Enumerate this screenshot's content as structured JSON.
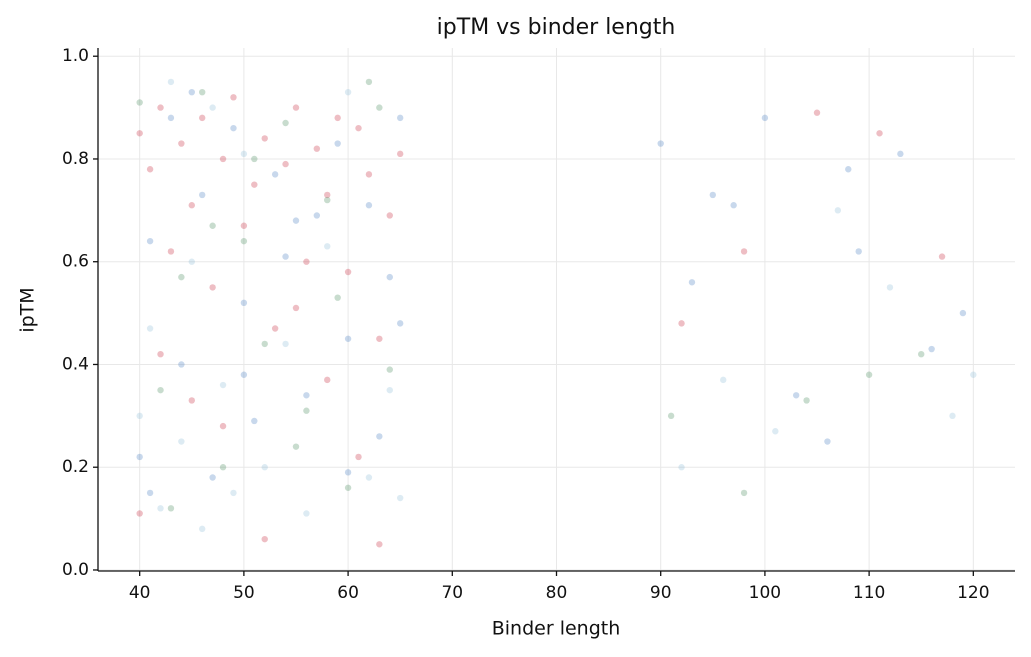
{
  "chart_data": {
    "type": "scatter",
    "title": "ipTM vs binder length",
    "x_label": "Binder length",
    "y_label": "ipTM",
    "xlim": [
      36,
      124
    ],
    "ylim": [
      -0.002,
      1.016
    ],
    "xticks": [
      40,
      50,
      60,
      70,
      80,
      90,
      100,
      110,
      120
    ],
    "yticks": [
      {
        "value": 0,
        "label": "0.0"
      },
      0.2,
      0.4,
      0.6,
      0.8,
      {
        "value": 1,
        "label": "1.0"
      }
    ],
    "grid": true,
    "series": [
      {
        "color": "#c8283c",
        "x": [
          40,
          41,
          42,
          43,
          44,
          45,
          46,
          47,
          48,
          49,
          50,
          51,
          52,
          53,
          54,
          55,
          56,
          57,
          58,
          59,
          60,
          61,
          62,
          63,
          64,
          65,
          40,
          42,
          45,
          48,
          52,
          55,
          58,
          61,
          63,
          92,
          98,
          105,
          111,
          117
        ],
        "values": [
          0.85,
          0.78,
          0.9,
          0.62,
          0.83,
          0.71,
          0.88,
          0.55,
          0.8,
          0.92,
          0.67,
          0.75,
          0.84,
          0.47,
          0.79,
          0.9,
          0.6,
          0.82,
          0.73,
          0.88,
          0.58,
          0.86,
          0.77,
          0.05,
          0.69,
          0.81,
          0.11,
          0.42,
          0.33,
          0.28,
          0.06,
          0.51,
          0.37,
          0.22,
          0.45,
          0.48,
          0.62,
          0.89,
          0.85,
          0.61
        ]
      },
      {
        "color": "#4a7fc1",
        "x": [
          40,
          41,
          43,
          44,
          46,
          47,
          49,
          50,
          51,
          53,
          54,
          56,
          57,
          59,
          60,
          62,
          63,
          64,
          65,
          41,
          45,
          50,
          55,
          60,
          65,
          90,
          93,
          97,
          100,
          103,
          106,
          109,
          113,
          116,
          119,
          95,
          108
        ],
        "values": [
          0.22,
          0.64,
          0.88,
          0.4,
          0.73,
          0.18,
          0.86,
          0.52,
          0.29,
          0.77,
          0.61,
          0.34,
          0.69,
          0.83,
          0.45,
          0.71,
          0.26,
          0.57,
          0.88,
          0.15,
          0.93,
          0.38,
          0.68,
          0.19,
          0.48,
          0.83,
          0.56,
          0.71,
          0.88,
          0.34,
          0.25,
          0.62,
          0.81,
          0.43,
          0.5,
          0.73,
          0.78
        ]
      },
      {
        "color": "#4a8c5c",
        "x": [
          40,
          42,
          44,
          46,
          48,
          50,
          52,
          54,
          56,
          58,
          60,
          62,
          64,
          43,
          47,
          51,
          55,
          59,
          63,
          91,
          98,
          104,
          110,
          115
        ],
        "values": [
          0.91,
          0.35,
          0.57,
          0.93,
          0.2,
          0.64,
          0.44,
          0.87,
          0.31,
          0.72,
          0.16,
          0.95,
          0.39,
          0.12,
          0.67,
          0.8,
          0.24,
          0.53,
          0.9,
          0.3,
          0.15,
          0.33,
          0.38,
          0.42
        ]
      },
      {
        "color": "#8fbcd8",
        "x": [
          40,
          41,
          42,
          43,
          44,
          45,
          46,
          47,
          48,
          49,
          50,
          52,
          54,
          56,
          58,
          60,
          62,
          64,
          65,
          92,
          96,
          101,
          107,
          112,
          118,
          120
        ],
        "values": [
          0.3,
          0.47,
          0.12,
          0.95,
          0.25,
          0.6,
          0.08,
          0.9,
          0.36,
          0.15,
          0.81,
          0.2,
          0.44,
          0.11,
          0.63,
          0.93,
          0.18,
          0.35,
          0.14,
          0.2,
          0.37,
          0.27,
          0.7,
          0.55,
          0.3,
          0.38
        ]
      }
    ]
  }
}
